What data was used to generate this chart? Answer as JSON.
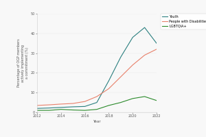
{
  "years": [
    2012,
    2013,
    2014,
    2015,
    2016,
    2017,
    2018,
    2019,
    2020,
    2021,
    2022
  ],
  "youth": [
    2.0,
    2.2,
    2.5,
    2.8,
    3.0,
    5.0,
    16.0,
    28.0,
    38.0,
    43.0,
    35.0
  ],
  "disabilities": [
    3.5,
    3.8,
    4.2,
    4.5,
    5.5,
    8.0,
    12.0,
    18.0,
    24.0,
    29.0,
    32.0
  ],
  "lgbtqia": [
    1.0,
    1.0,
    1.5,
    1.2,
    1.0,
    1.5,
    3.5,
    5.0,
    7.0,
    8.0,
    6.0
  ],
  "youth_color": "#2a7f7f",
  "disabilities_color": "#e8806a",
  "lgbtqia_color": "#2a8a2a",
  "xlabel": "Year",
  "ylabel": "Percentage of OGP members\nactively implementing\na commitment (%)",
  "ylim": [
    0,
    50
  ],
  "xlim": [
    2012,
    2022
  ],
  "yticks": [
    0,
    10,
    20,
    30,
    40,
    50
  ],
  "xticks": [
    2012,
    2014,
    2016,
    2018,
    2020,
    2022
  ],
  "legend_labels": [
    "Youth",
    "People with Disabilities",
    "LGBTQIA+"
  ],
  "background_color": "#f8f8f8",
  "linewidth": 0.8
}
